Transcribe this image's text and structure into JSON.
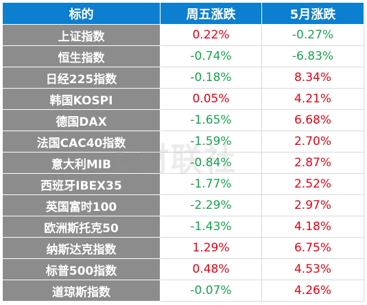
{
  "table": {
    "headers": [
      "标的",
      "周五涨跌",
      "5月涨跌"
    ],
    "rows": [
      {
        "name": "上证指数",
        "fri": "0.22%",
        "may": "-0.27%",
        "fri_dir": "pos",
        "may_dir": "neg"
      },
      {
        "name": "恒生指数",
        "fri": "-0.74%",
        "may": "-6.83%",
        "fri_dir": "neg",
        "may_dir": "neg"
      },
      {
        "name": "日经225指数",
        "fri": "-0.18%",
        "may": "8.34%",
        "fri_dir": "neg",
        "may_dir": "pos"
      },
      {
        "name": "韩国KOSPI",
        "fri": "0.05%",
        "may": "4.21%",
        "fri_dir": "pos",
        "may_dir": "pos"
      },
      {
        "name": "德国DAX",
        "fri": "-1.65%",
        "may": "6.68%",
        "fri_dir": "neg",
        "may_dir": "pos"
      },
      {
        "name": "法国CAC40指数",
        "fri": "-1.59%",
        "may": "2.70%",
        "fri_dir": "neg",
        "may_dir": "pos"
      },
      {
        "name": "意大利MIB",
        "fri": "-0.84%",
        "may": "2.87%",
        "fri_dir": "neg",
        "may_dir": "pos"
      },
      {
        "name": "西班牙IBEX35",
        "fri": "-1.77%",
        "may": "2.52%",
        "fri_dir": "neg",
        "may_dir": "pos"
      },
      {
        "name": "英国富时100",
        "fri": "-2.29%",
        "may": "2.97%",
        "fri_dir": "neg",
        "may_dir": "pos"
      },
      {
        "name": "欧洲斯托克50",
        "fri": "-1.43%",
        "may": "4.18%",
        "fri_dir": "neg",
        "may_dir": "pos"
      },
      {
        "name": "纳斯达克指数",
        "fri": "1.29%",
        "may": "6.75%",
        "fri_dir": "pos",
        "may_dir": "pos"
      },
      {
        "name": "标普500指数",
        "fri": "0.48%",
        "may": "4.53%",
        "fri_dir": "pos",
        "may_dir": "pos"
      },
      {
        "name": "道琼斯指数",
        "fri": "-0.07%",
        "may": "4.26%",
        "fri_dir": "neg",
        "may_dir": "pos"
      }
    ]
  },
  "watermark": "C财联社",
  "colors": {
    "header_bg": "#0d7fd0",
    "index_bg": "#8c8c8c",
    "positive": "#e60012",
    "negative": "#16a34a"
  }
}
